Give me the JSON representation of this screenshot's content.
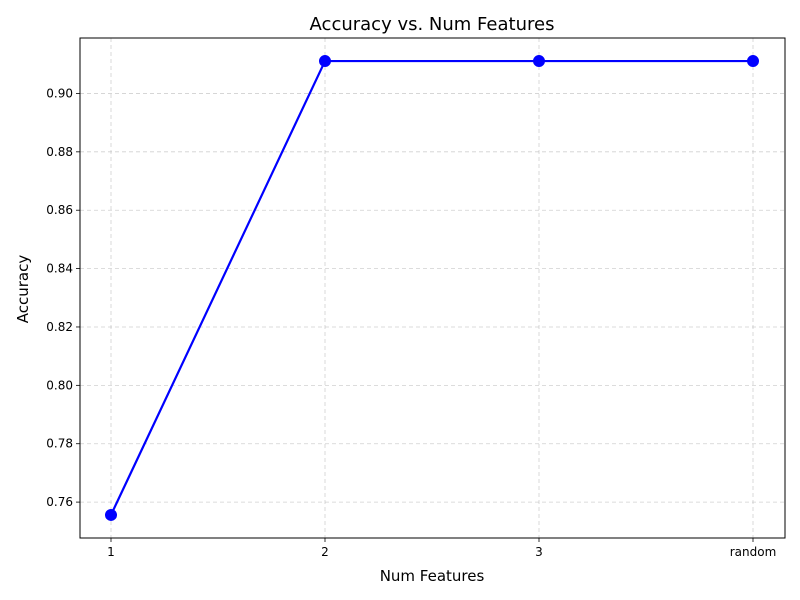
{
  "chart_data": {
    "type": "line",
    "title": "Accuracy vs. Num Features",
    "xlabel": "Num Features",
    "ylabel": "Accuracy",
    "categories": [
      "1",
      "2",
      "3",
      "random"
    ],
    "series": [
      {
        "values": [
          0.7556,
          0.9111,
          0.9111,
          0.9111
        ],
        "color": "#0000ff",
        "marker": "circle"
      }
    ],
    "yticks": [
      0.76,
      0.78,
      0.8,
      0.82,
      0.84,
      0.86,
      0.88,
      0.9
    ],
    "ytick_labels": [
      "0.76",
      "0.78",
      "0.80",
      "0.82",
      "0.84",
      "0.86",
      "0.88",
      "0.90"
    ],
    "ylim": [
      0.7477,
      0.919
    ],
    "grid": true,
    "legend": "none"
  }
}
